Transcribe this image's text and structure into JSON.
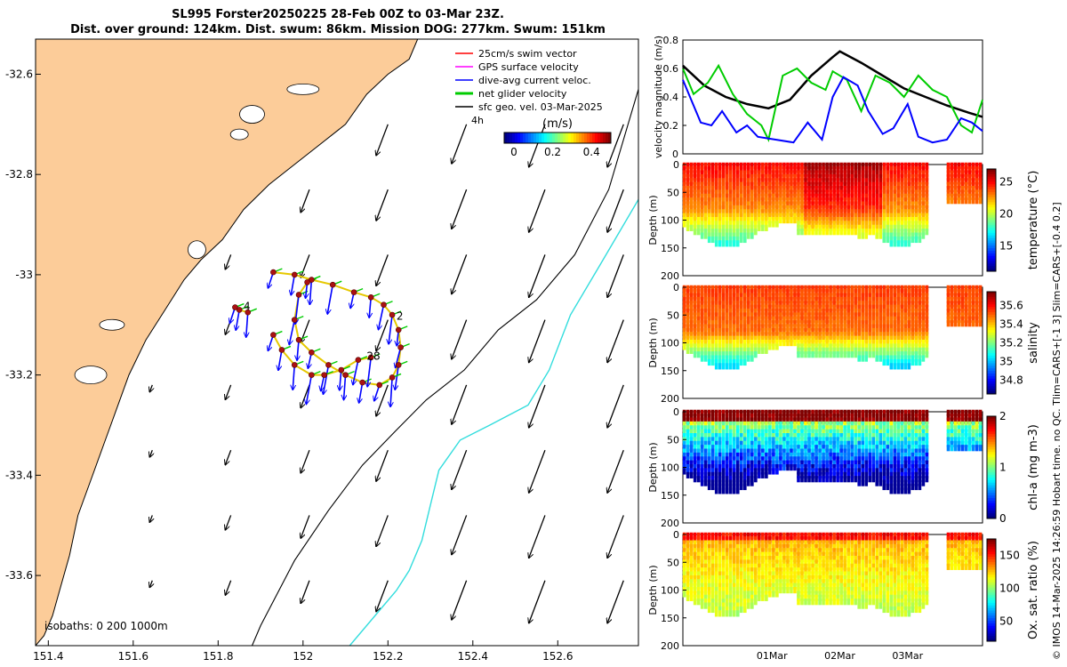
{
  "title": {
    "line1": "SL995 Forster20250225 28-Feb 00Z to 03-Mar 23Z.",
    "line2": "Dist. over ground: 124km. Dist. swum: 86km. Mission DOG: 277km. Swum: 151km"
  },
  "side_label": "© IMOS 14-Mar-2025 14:26:59 Hobart time. no QC. Tlim=CARS+[-1 3] Slim=CARS+[-0.4 0.2]",
  "colors": {
    "land": "#fccc99",
    "grid": "#dddddd"
  },
  "chart_data": [
    {
      "type": "map",
      "name": "glider-track-map",
      "x_ticks": [
        "151.4",
        "151.6",
        "151.8",
        "152",
        "152.2",
        "152.4",
        "152.6"
      ],
      "x_tick_values": [
        151.4,
        151.6,
        151.8,
        152.0,
        152.2,
        152.4,
        152.6
      ],
      "y_ticks": [
        "-32.6",
        "-32.8",
        "-33",
        "-33.2",
        "-33.4",
        "-33.6"
      ],
      "y_tick_values": [
        -32.6,
        -32.8,
        -33.0,
        -33.2,
        -33.4,
        -33.6
      ],
      "xlim": [
        151.37,
        152.79
      ],
      "ylim": [
        -33.74,
        -32.53
      ],
      "legend": [
        {
          "label": "25cm/s swim vector",
          "color": "#ff0000"
        },
        {
          "label": "GPS surface velocity",
          "color": "#ff00ff"
        },
        {
          "label": "dive-avg current veloc.",
          "color": "#0000ff"
        },
        {
          "label": "net glider velocity",
          "color": "#00cc00"
        },
        {
          "label": "sfc geo. vel. 03-Mar-2025",
          "color": "#000000"
        }
      ],
      "legend_note": "4h",
      "colorbar": {
        "label": "(m/s)",
        "ticks": [
          "0",
          "0.2",
          "0.4"
        ],
        "tick_values": [
          0,
          0.2,
          0.4
        ],
        "range": [
          -0.05,
          0.5
        ]
      },
      "isobaths_label": "isobaths: 0   200   1000m",
      "track_labels": [
        {
          "text": "2",
          "lon": 152.22,
          "lat": -33.09
        },
        {
          "text": "28",
          "lon": 152.15,
          "lat": -33.17
        },
        {
          "text": "4",
          "lon": 151.86,
          "lat": -33.07
        }
      ],
      "track": [
        [
          151.93,
          -32.995
        ],
        [
          151.98,
          -33.0
        ],
        [
          152.02,
          -33.01
        ],
        [
          152.07,
          -33.02
        ],
        [
          152.12,
          -33.035
        ],
        [
          152.16,
          -33.045
        ],
        [
          152.19,
          -33.06
        ],
        [
          152.21,
          -33.08
        ],
        [
          152.225,
          -33.11
        ],
        [
          152.23,
          -33.145
        ],
        [
          152.225,
          -33.18
        ],
        [
          152.21,
          -33.205
        ],
        [
          152.18,
          -33.22
        ],
        [
          152.14,
          -33.215
        ],
        [
          152.1,
          -33.2
        ],
        [
          152.06,
          -33.18
        ],
        [
          152.02,
          -33.155
        ],
        [
          151.99,
          -33.13
        ],
        [
          151.98,
          -33.09
        ],
        [
          151.99,
          -33.04
        ],
        [
          152.01,
          -33.015
        ]
      ],
      "track_b": [
        [
          151.93,
          -33.12
        ],
        [
          151.95,
          -33.15
        ],
        [
          151.98,
          -33.18
        ],
        [
          152.02,
          -33.2
        ],
        [
          152.05,
          -33.2
        ],
        [
          152.09,
          -33.19
        ],
        [
          152.13,
          -33.17
        ],
        [
          152.16,
          -33.165
        ]
      ],
      "track_c": [
        [
          151.84,
          -33.065
        ],
        [
          151.85,
          -33.07
        ],
        [
          151.87,
          -33.075
        ]
      ],
      "isobath_1000": [
        [
          152.79,
          -32.63
        ],
        [
          152.72,
          -32.83
        ],
        [
          152.64,
          -32.96
        ],
        [
          152.55,
          -33.05
        ],
        [
          152.46,
          -33.11
        ],
        [
          152.38,
          -33.19
        ],
        [
          152.29,
          -33.25
        ],
        [
          152.22,
          -33.31
        ],
        [
          152.14,
          -33.38
        ],
        [
          152.06,
          -33.47
        ],
        [
          151.98,
          -33.57
        ],
        [
          151.9,
          -33.7
        ],
        [
          151.88,
          -33.74
        ]
      ],
      "isobath_cyan": [
        [
          152.79,
          -32.85
        ],
        [
          152.7,
          -32.98
        ],
        [
          152.63,
          -33.08
        ],
        [
          152.58,
          -33.19
        ],
        [
          152.53,
          -33.26
        ],
        [
          152.44,
          -33.3
        ],
        [
          152.37,
          -33.33
        ],
        [
          152.32,
          -33.39
        ],
        [
          152.3,
          -33.46
        ],
        [
          152.28,
          -33.53
        ],
        [
          152.25,
          -33.59
        ],
        [
          152.22,
          -33.63
        ],
        [
          152.18,
          -33.67
        ],
        [
          152.11,
          -33.74
        ]
      ],
      "coastline": [
        [
          151.37,
          -32.53
        ],
        [
          152.27,
          -32.53
        ],
        [
          152.25,
          -32.57
        ],
        [
          152.2,
          -32.6
        ],
        [
          152.15,
          -32.64
        ],
        [
          152.1,
          -32.7
        ],
        [
          152.04,
          -32.74
        ],
        [
          151.98,
          -32.78
        ],
        [
          151.92,
          -32.82
        ],
        [
          151.86,
          -32.87
        ],
        [
          151.81,
          -32.93
        ],
        [
          151.76,
          -32.97
        ],
        [
          151.72,
          -33.01
        ],
        [
          151.69,
          -33.05
        ],
        [
          151.66,
          -33.09
        ],
        [
          151.63,
          -33.13
        ],
        [
          151.59,
          -33.2
        ],
        [
          151.56,
          -33.27
        ],
        [
          151.53,
          -33.34
        ],
        [
          151.5,
          -33.41
        ],
        [
          151.47,
          -33.48
        ],
        [
          151.45,
          -33.56
        ],
        [
          151.43,
          -33.62
        ],
        [
          151.41,
          -33.68
        ],
        [
          151.39,
          -33.72
        ],
        [
          151.37,
          -33.74
        ]
      ]
    },
    {
      "type": "line",
      "name": "velocity-panel",
      "ylabel": "velocity magnitude (m/s)",
      "ylim": [
        0,
        0.8
      ],
      "y_ticks": [
        "0",
        "0.2",
        "0.4",
        "0.6",
        "0.8"
      ],
      "y_tick_values": [
        0,
        0.2,
        0.4,
        0.6,
        0.8
      ],
      "xlim": [
        0,
        4.2
      ],
      "series": [
        {
          "name": "sfc geo vel",
          "color": "#000000",
          "x": [
            0,
            0.3,
            0.6,
            0.9,
            1.2,
            1.5,
            1.8,
            2.1,
            2.2,
            2.5,
            2.8,
            3.1,
            3.4,
            3.7,
            4.0,
            4.2
          ],
          "values": [
            0.62,
            0.48,
            0.4,
            0.35,
            0.32,
            0.38,
            0.55,
            0.68,
            0.72,
            0.64,
            0.55,
            0.46,
            0.4,
            0.34,
            0.29,
            0.26
          ]
        },
        {
          "name": "net glider",
          "color": "#00cc00",
          "x": [
            0,
            0.15,
            0.35,
            0.5,
            0.7,
            0.9,
            1.1,
            1.2,
            1.4,
            1.6,
            1.8,
            2.0,
            2.1,
            2.3,
            2.5,
            2.7,
            2.9,
            3.1,
            3.3,
            3.5,
            3.7,
            3.9,
            4.05,
            4.2
          ],
          "values": [
            0.6,
            0.42,
            0.5,
            0.62,
            0.42,
            0.28,
            0.2,
            0.1,
            0.55,
            0.6,
            0.5,
            0.45,
            0.58,
            0.52,
            0.3,
            0.55,
            0.5,
            0.4,
            0.55,
            0.45,
            0.4,
            0.2,
            0.15,
            0.38
          ]
        },
        {
          "name": "dive-avg current",
          "color": "#0000ff",
          "x": [
            0,
            0.1,
            0.25,
            0.4,
            0.55,
            0.75,
            0.9,
            1.05,
            1.3,
            1.55,
            1.75,
            1.95,
            2.1,
            2.25,
            2.45,
            2.6,
            2.8,
            2.95,
            3.15,
            3.3,
            3.5,
            3.7,
            3.9,
            4.05,
            4.2
          ],
          "values": [
            0.52,
            0.4,
            0.22,
            0.2,
            0.3,
            0.15,
            0.2,
            0.12,
            0.1,
            0.08,
            0.22,
            0.1,
            0.4,
            0.54,
            0.48,
            0.3,
            0.14,
            0.18,
            0.35,
            0.12,
            0.08,
            0.1,
            0.25,
            0.22,
            0.16
          ]
        }
      ]
    },
    {
      "type": "heatmap",
      "name": "temperature-panel",
      "ylabel": "Depth (m)",
      "cbar_label": "temperature (°C)",
      "cbar_ticks": [
        "25",
        "20",
        "15"
      ],
      "cbar_tick_values": [
        25,
        20,
        15
      ],
      "crange": [
        11,
        27
      ],
      "ylim": [
        0,
        200
      ],
      "y_ticks": [
        "0",
        "50",
        "100",
        "150",
        "200"
      ],
      "y_tick_values": [
        0,
        50,
        100,
        150,
        200
      ],
      "bottom_depth_m": [
        [
          0,
          120
        ],
        [
          0.5,
          130
        ],
        [
          1.0,
          112
        ],
        [
          1.5,
          128
        ],
        [
          2.0,
          140
        ],
        [
          2.5,
          132
        ],
        [
          3.2,
          126
        ],
        [
          3.4,
          122
        ]
      ]
    },
    {
      "type": "heatmap",
      "name": "salinity-panel",
      "ylabel": "Depth (m)",
      "cbar_label": "salinity",
      "cbar_ticks": [
        "35.6",
        "35.4",
        "35.2",
        "35",
        "34.8"
      ],
      "cbar_tick_values": [
        35.6,
        35.4,
        35.2,
        35.0,
        34.8
      ],
      "crange": [
        34.65,
        35.75
      ],
      "ylim": [
        0,
        200
      ],
      "y_ticks": [
        "0",
        "50",
        "100",
        "150",
        "200"
      ],
      "y_tick_values": [
        0,
        50,
        100,
        150,
        200
      ]
    },
    {
      "type": "heatmap",
      "name": "chla-panel",
      "ylabel": "Depth (m)",
      "cbar_label": "chl-a (mg m-3)",
      "cbar_ticks": [
        "2",
        "1",
        "0"
      ],
      "cbar_tick_values": [
        2,
        1,
        0
      ],
      "crange": [
        0,
        2
      ],
      "ylim": [
        0,
        200
      ],
      "y_ticks": [
        "0",
        "50",
        "100",
        "150",
        "200"
      ],
      "y_tick_values": [
        0,
        50,
        100,
        150,
        200
      ]
    },
    {
      "type": "heatmap",
      "name": "oxygen-panel",
      "ylabel": "Depth (m)",
      "cbar_label": "Ox. sat. ratio (%)",
      "cbar_ticks": [
        "150",
        "100",
        "50"
      ],
      "cbar_tick_values": [
        150,
        100,
        50
      ],
      "crange": [
        20,
        175
      ],
      "ylim": [
        0,
        200
      ],
      "y_ticks": [
        "0",
        "50",
        "100",
        "150",
        "200"
      ],
      "y_tick_values": [
        0,
        50,
        100,
        150,
        200
      ],
      "x_ticks": [
        "01Mar",
        "02Mar",
        "03Mar"
      ],
      "x_tick_values": [
        1,
        2,
        3
      ]
    }
  ]
}
